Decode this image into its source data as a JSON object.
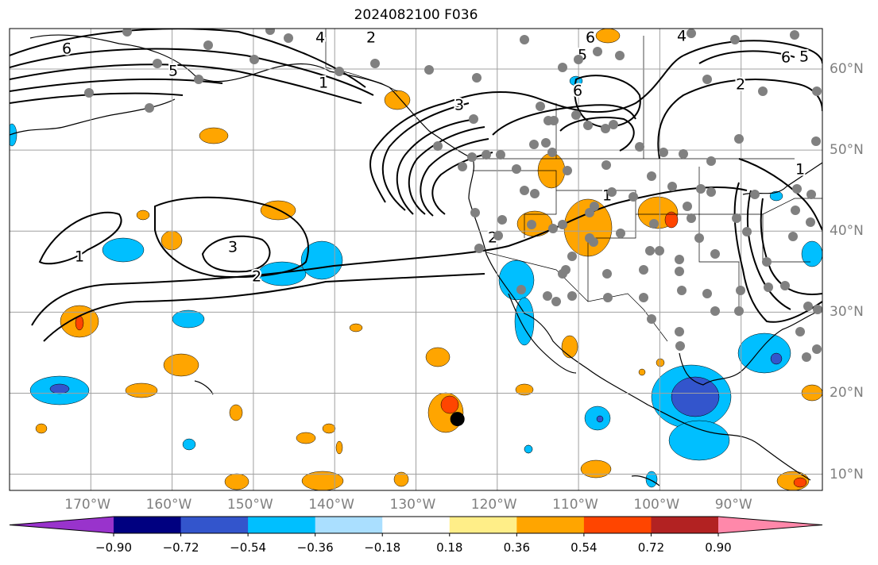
{
  "title": "2024082100 F036",
  "map": {
    "projection": "plate-carree",
    "lon_range": [
      -180,
      -80
    ],
    "lat_range": [
      8,
      65
    ],
    "grid": true,
    "lat_ticks": [
      {
        "value": 10,
        "label": "10°N"
      },
      {
        "value": 20,
        "label": "20°N"
      },
      {
        "value": 30,
        "label": "30°N"
      },
      {
        "value": 40,
        "label": "40°N"
      },
      {
        "value": 50,
        "label": "50°N"
      },
      {
        "value": 60,
        "label": "60°N"
      }
    ],
    "lon_ticks": [
      {
        "value": -170,
        "label": "170°W"
      },
      {
        "value": -160,
        "label": "160°W"
      },
      {
        "value": -150,
        "label": "150°W"
      },
      {
        "value": -140,
        "label": "140°W"
      },
      {
        "value": -130,
        "label": "130°W"
      },
      {
        "value": -120,
        "label": "120°W"
      },
      {
        "value": -110,
        "label": "110°W"
      },
      {
        "value": -100,
        "label": "100°W"
      },
      {
        "value": -90,
        "label": "90°W"
      }
    ],
    "contour_labels": [
      "1",
      "2",
      "3",
      "4",
      "5",
      "6"
    ],
    "station_color": "#808080",
    "marker": {
      "name": "black-dot",
      "lon": -124.9,
      "lat": 16.8
    }
  },
  "colorbar": {
    "orientation": "horizontal",
    "extend": "both",
    "colors": [
      "#9933cc",
      "#000080",
      "#3355cc",
      "#00bfff",
      "#aadfff",
      "#ffffff",
      "#ffee88",
      "#ffa500",
      "#ff4500",
      "#b22222",
      "#ff88aa"
    ],
    "tick_labels": [
      "−0.90",
      "−0.72",
      "−0.54",
      "−0.36",
      "−0.18",
      "0.18",
      "0.36",
      "0.54",
      "0.72",
      "0.90"
    ]
  }
}
